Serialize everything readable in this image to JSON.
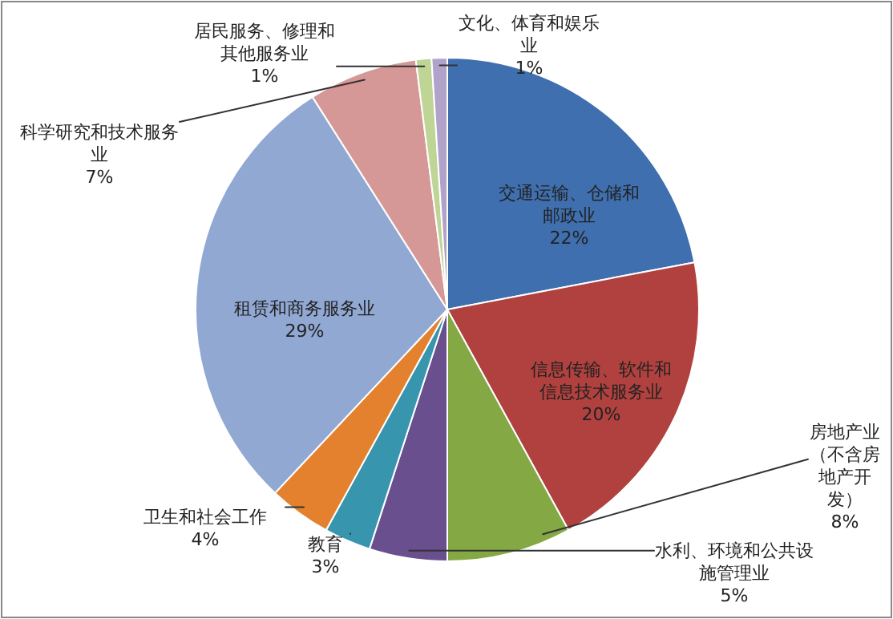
{
  "chart_data": {
    "type": "pie",
    "categories": [
      "交通运输、仓储和邮政业",
      "信息传输、软件和信息技术服务业",
      "房地产业（不含房地产开发）",
      "水利、环境和公共设施管理业",
      "教育",
      "卫生和社会工作",
      "租赁和商务服务业",
      "科学研究和技术服务业",
      "居民服务、修理和其他服务业",
      "文化、体育和娱乐业"
    ],
    "values": [
      22,
      20,
      8,
      5,
      3,
      4,
      29,
      7,
      1,
      1
    ],
    "colors": [
      "#3f6fae",
      "#b0413e",
      "#84a844",
      "#6a4f8f",
      "#3796ad",
      "#e3812f",
      "#91a8d3",
      "#d69896",
      "#bfd595",
      "#b1a2c9"
    ],
    "value_labels": [
      "22%",
      "20%",
      "8%",
      "5%",
      "3%",
      "4%",
      "29%",
      "7%",
      "1%",
      "1%"
    ]
  }
}
